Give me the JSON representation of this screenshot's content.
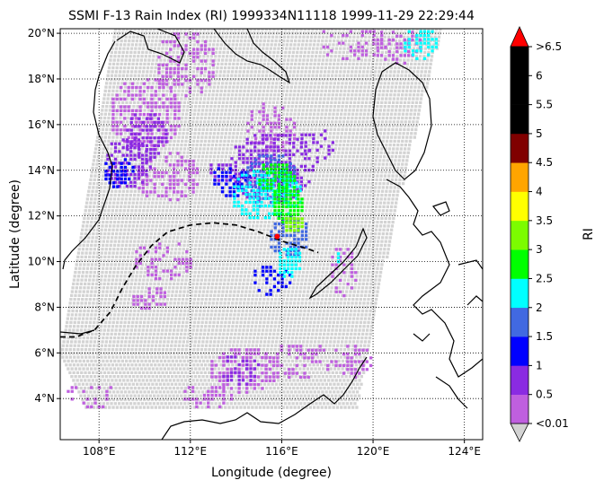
{
  "title": "SSMI F-13 Rain Index (RI) 1999334N11118 1999-11-29 22:29:44",
  "xlabel": "Longitude (degree)",
  "ylabel": "Latitude (degree)",
  "colorbar": {
    "label": "RI",
    "under_label": "<0.01",
    "over_label": ">6.5",
    "levels": [
      "0.5",
      "1",
      "1.5",
      "2",
      "2.5",
      "3",
      "3.5",
      "4",
      "4.5",
      "5",
      "5.5",
      "6"
    ],
    "under_color": "#d3d3d3",
    "over_color": "#ff0000",
    "colors": [
      "#bf5fdf",
      "#8a2be2",
      "#0000ff",
      "#4169e1",
      "#00ffff",
      "#00ff00",
      "#7cfc00",
      "#ffff00",
      "#ffa500",
      "#800000",
      "#000000",
      "#000000",
      "#000000"
    ]
  },
  "map": {
    "lon_range": [
      106.3,
      124.8
    ],
    "lat_range": [
      2.2,
      20.2
    ],
    "lon_ticks": [
      108,
      112,
      116,
      120,
      124
    ],
    "lat_ticks": [
      4,
      6,
      8,
      10,
      12,
      14,
      16,
      18,
      20
    ],
    "lon_tick_labels": [
      "108°E",
      "112°E",
      "116°E",
      "120°E",
      "124°E"
    ],
    "lat_tick_labels": [
      "4°N",
      "6°N",
      "8°N",
      "10°N",
      "12°N",
      "14°N",
      "16°N",
      "18°N",
      "20°N"
    ],
    "grid": "dotted",
    "storm_center": {
      "lon": 115.8,
      "lat": 11.1
    },
    "track": [
      [
        106.3,
        6.7
      ],
      [
        107.0,
        6.7
      ],
      [
        107.8,
        7.0
      ],
      [
        108.5,
        7.8
      ],
      [
        109.0,
        8.8
      ],
      [
        109.6,
        9.8
      ],
      [
        110.3,
        10.7
      ],
      [
        111.0,
        11.3
      ],
      [
        112.0,
        11.6
      ],
      [
        113.0,
        11.7
      ],
      [
        114.0,
        11.6
      ],
      [
        115.0,
        11.3
      ],
      [
        116.0,
        10.9
      ],
      [
        117.0,
        10.6
      ],
      [
        117.6,
        10.4
      ]
    ],
    "swath_color": "#d3d3d3"
  }
}
